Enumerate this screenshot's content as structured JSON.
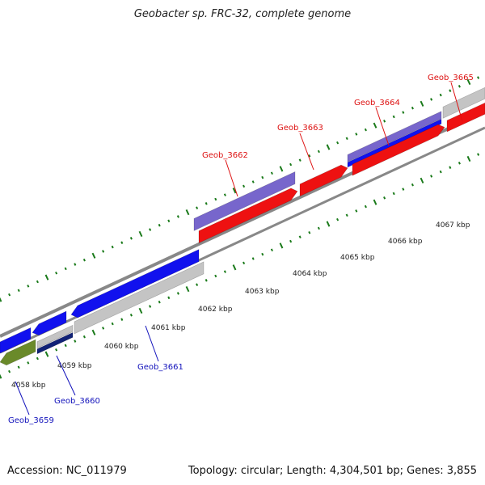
{
  "title": "Geobacter sp. FRC-32, complete genome",
  "accession_text": "Accession: NC_011979",
  "summary_text": "Topology: circular; Length: 4,304,501 bp; Genes: 3,855",
  "colors": {
    "forward_cds": "#ee1111",
    "forward_other": "#7766cc",
    "forward_blue": "#1111ee",
    "reverse_cds": "#1111ee",
    "reverse_gray": "#c4c4c4",
    "reverse_green": "#6a8a2a",
    "reverse_navy": "#112277",
    "backbone": "#888888",
    "ticks": "#1a7a1a",
    "label_forward": "#dd1111",
    "label_reverse": "#1111bb"
  },
  "scale_labels": [
    "4058 kbp",
    "4059 kbp",
    "4060 kbp",
    "4061 kbp",
    "4062 kbp",
    "4063 kbp",
    "4064 kbp",
    "4065 kbp",
    "4066 kbp",
    "4067 kbp"
  ],
  "gene_labels": [
    {
      "text": "Geob_3659",
      "strand": "reverse"
    },
    {
      "text": "Geob_3660",
      "strand": "reverse"
    },
    {
      "text": "Geob_3661",
      "strand": "reverse"
    },
    {
      "text": "Geob_3662",
      "strand": "forward"
    },
    {
      "text": "Geob_3663",
      "strand": "forward"
    },
    {
      "text": "Geob_3664",
      "strand": "forward"
    },
    {
      "text": "Geob_3665",
      "strand": "forward"
    }
  ]
}
